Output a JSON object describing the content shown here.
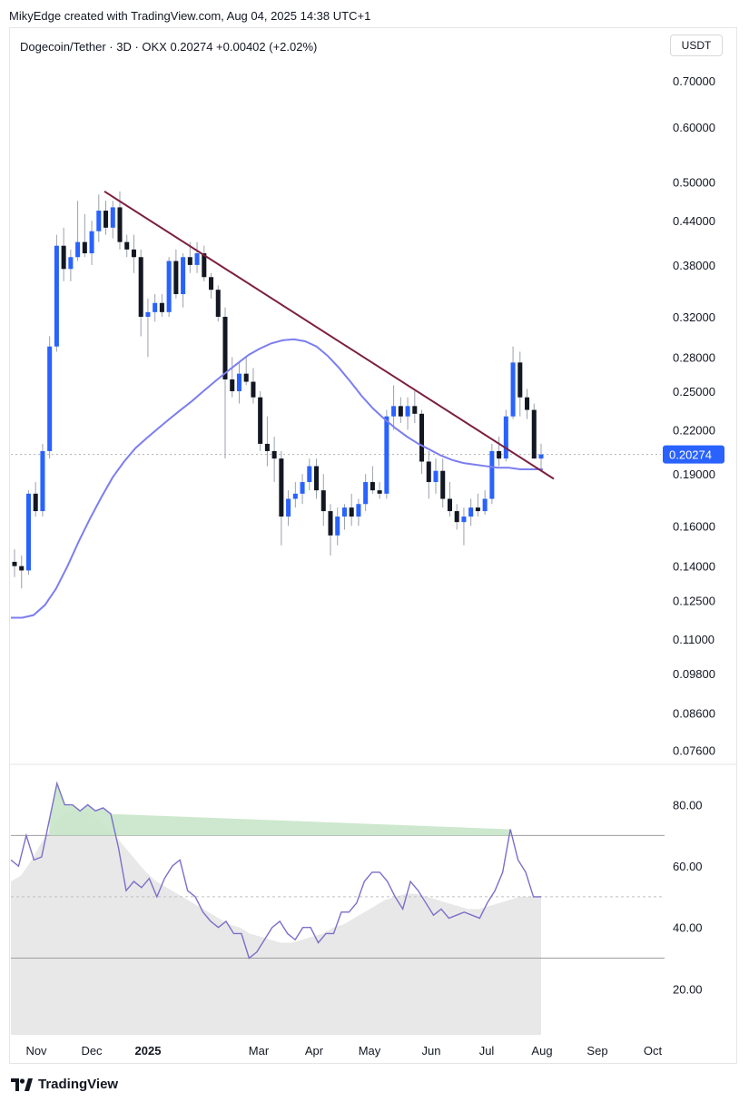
{
  "header": {
    "caption": "MikyEdge created with TradingView.com, Aug 04, 2025 14:38 UTC+1"
  },
  "legend": {
    "symbol_line": "Dogecoin/Tether · 3D · OKX  0.20274  +0.00402 (+2.02%)"
  },
  "currency_button": {
    "label": "USDT"
  },
  "footer": {
    "brand": "TradingView"
  },
  "colors": {
    "up_candle": "#2962ff",
    "down_candle": "#131722",
    "wick": "#9aa0ab",
    "trendline": "#7b1f3d",
    "moving_average": "#7b7ef0",
    "rsi_line": "#7b6fc9",
    "rsi_shade": "#e8e8e8",
    "rsi_overbought_fill": "#c8e6c9",
    "price_label_bg": "#2962ff"
  },
  "chart_data": [
    {
      "type": "candlestick",
      "title": "Dogecoin/Tether · 3D · OKX",
      "scale": "log",
      "y_ticks": [
        "0.70000",
        "0.60000",
        "0.50000",
        "0.44000",
        "0.38000",
        "0.32000",
        "0.28000",
        "0.25000",
        "0.22000",
        "0.19000",
        "0.16000",
        "0.14000",
        "0.12500",
        "0.11000",
        "0.09800",
        "0.08600",
        "0.07600"
      ],
      "x_ticks": [
        "Nov",
        "Dec",
        "2025",
        "Mar",
        "Apr",
        "May",
        "Jun",
        "Jul",
        "Aug",
        "Sep",
        "Oct"
      ],
      "current_price": "0.20274",
      "candles_ohlc": [
        [
          0.142,
          0.148,
          0.135,
          0.14
        ],
        [
          0.14,
          0.145,
          0.13,
          0.138
        ],
        [
          0.138,
          0.18,
          0.136,
          0.178
        ],
        [
          0.178,
          0.185,
          0.165,
          0.168
        ],
        [
          0.168,
          0.21,
          0.165,
          0.205
        ],
        [
          0.205,
          0.3,
          0.2,
          0.29
        ],
        [
          0.29,
          0.42,
          0.285,
          0.405
        ],
        [
          0.405,
          0.43,
          0.36,
          0.375
        ],
        [
          0.375,
          0.4,
          0.36,
          0.39
        ],
        [
          0.39,
          0.47,
          0.385,
          0.41
        ],
        [
          0.41,
          0.45,
          0.39,
          0.395
        ],
        [
          0.395,
          0.44,
          0.38,
          0.425
        ],
        [
          0.425,
          0.48,
          0.41,
          0.455
        ],
        [
          0.455,
          0.47,
          0.42,
          0.43
        ],
        [
          0.43,
          0.47,
          0.415,
          0.46
        ],
        [
          0.46,
          0.485,
          0.4,
          0.41
        ],
        [
          0.41,
          0.42,
          0.39,
          0.4
        ],
        [
          0.4,
          0.42,
          0.37,
          0.39
        ],
        [
          0.39,
          0.4,
          0.3,
          0.32
        ],
        [
          0.32,
          0.34,
          0.28,
          0.325
        ],
        [
          0.325,
          0.345,
          0.315,
          0.335
        ],
        [
          0.335,
          0.345,
          0.32,
          0.325
        ],
        [
          0.325,
          0.39,
          0.32,
          0.385
        ],
        [
          0.385,
          0.4,
          0.34,
          0.345
        ],
        [
          0.345,
          0.395,
          0.33,
          0.39
        ],
        [
          0.39,
          0.41,
          0.37,
          0.38
        ],
        [
          0.38,
          0.41,
          0.37,
          0.395
        ],
        [
          0.395,
          0.405,
          0.36,
          0.365
        ],
        [
          0.365,
          0.37,
          0.34,
          0.35
        ],
        [
          0.35,
          0.355,
          0.315,
          0.32
        ],
        [
          0.32,
          0.33,
          0.2,
          0.26
        ],
        [
          0.26,
          0.28,
          0.245,
          0.25
        ],
        [
          0.25,
          0.275,
          0.24,
          0.265
        ],
        [
          0.265,
          0.28,
          0.255,
          0.258
        ],
        [
          0.258,
          0.27,
          0.24,
          0.245
        ],
        [
          0.245,
          0.25,
          0.205,
          0.21
        ],
        [
          0.21,
          0.23,
          0.195,
          0.205
        ],
        [
          0.205,
          0.215,
          0.185,
          0.2
        ],
        [
          0.2,
          0.205,
          0.15,
          0.165
        ],
        [
          0.165,
          0.18,
          0.16,
          0.175
        ],
        [
          0.175,
          0.185,
          0.17,
          0.178
        ],
        [
          0.178,
          0.19,
          0.172,
          0.185
        ],
        [
          0.185,
          0.2,
          0.18,
          0.195
        ],
        [
          0.195,
          0.2,
          0.175,
          0.18
        ],
        [
          0.18,
          0.19,
          0.16,
          0.168
        ],
        [
          0.168,
          0.172,
          0.145,
          0.155
        ],
        [
          0.155,
          0.17,
          0.15,
          0.165
        ],
        [
          0.165,
          0.172,
          0.158,
          0.17
        ],
        [
          0.17,
          0.178,
          0.16,
          0.165
        ],
        [
          0.165,
          0.175,
          0.16,
          0.172
        ],
        [
          0.172,
          0.19,
          0.168,
          0.185
        ],
        [
          0.185,
          0.195,
          0.178,
          0.18
        ],
        [
          0.18,
          0.185,
          0.175,
          0.178
        ],
        [
          0.178,
          0.235,
          0.175,
          0.23
        ],
        [
          0.23,
          0.255,
          0.22,
          0.238
        ],
        [
          0.238,
          0.245,
          0.225,
          0.23
        ],
        [
          0.23,
          0.245,
          0.22,
          0.238
        ],
        [
          0.238,
          0.25,
          0.225,
          0.232
        ],
        [
          0.232,
          0.235,
          0.19,
          0.198
        ],
        [
          0.198,
          0.205,
          0.175,
          0.185
        ],
        [
          0.185,
          0.2,
          0.178,
          0.192
        ],
        [
          0.192,
          0.2,
          0.17,
          0.175
        ],
        [
          0.175,
          0.185,
          0.165,
          0.168
        ],
        [
          0.168,
          0.172,
          0.158,
          0.162
        ],
        [
          0.162,
          0.17,
          0.15,
          0.165
        ],
        [
          0.165,
          0.175,
          0.16,
          0.17
        ],
        [
          0.17,
          0.178,
          0.165,
          0.168
        ],
        [
          0.168,
          0.18,
          0.166,
          0.175
        ],
        [
          0.175,
          0.21,
          0.172,
          0.205
        ],
        [
          0.205,
          0.215,
          0.195,
          0.2
        ],
        [
          0.2,
          0.235,
          0.198,
          0.23
        ],
        [
          0.23,
          0.29,
          0.228,
          0.275
        ],
        [
          0.275,
          0.285,
          0.23,
          0.245
        ],
        [
          0.245,
          0.252,
          0.228,
          0.235
        ],
        [
          0.235,
          0.24,
          0.2,
          0.2
        ],
        [
          0.2,
          0.21,
          0.192,
          0.20274
        ]
      ],
      "moving_average": [
        0.118,
        0.118,
        0.119,
        0.123,
        0.13,
        0.14,
        0.152,
        0.164,
        0.176,
        0.188,
        0.198,
        0.207,
        0.214,
        0.221,
        0.228,
        0.235,
        0.242,
        0.25,
        0.258,
        0.266,
        0.274,
        0.282,
        0.288,
        0.293,
        0.296,
        0.297,
        0.295,
        0.29,
        0.281,
        0.27,
        0.258,
        0.246,
        0.236,
        0.228,
        0.221,
        0.215,
        0.21,
        0.206,
        0.202,
        0.199,
        0.197,
        0.196,
        0.195,
        0.194,
        0.194,
        0.193,
        0.193,
        0.193
      ],
      "trendline": {
        "from": {
          "x": "Dec",
          "y": 0.485
        },
        "to": {
          "x": "Aug",
          "y": 0.187
        }
      }
    },
    {
      "type": "line",
      "title": "RSI",
      "y_ticks": [
        "80.00",
        "60.00",
        "40.00",
        "20.00"
      ],
      "ylim": [
        5,
        92
      ],
      "bands": [
        70,
        30
      ],
      "midline": 50,
      "rsi": [
        62,
        60,
        70,
        62,
        63,
        75,
        87,
        80,
        80,
        78,
        80,
        78,
        79,
        77,
        66,
        52,
        55,
        53,
        56,
        50,
        56,
        60,
        62,
        52,
        50,
        45,
        42,
        40,
        42,
        38,
        38,
        30,
        32,
        36,
        40,
        42,
        38,
        36,
        40,
        40,
        35,
        38,
        38,
        45,
        45,
        48,
        55,
        58,
        58,
        55,
        50,
        46,
        55,
        52,
        48,
        44,
        46,
        43,
        44,
        45,
        44,
        43,
        48,
        52,
        58,
        72,
        62,
        58,
        50,
        50
      ],
      "rsi_ma": [
        55,
        57,
        62,
        68,
        73,
        77,
        78,
        78,
        76,
        73,
        70,
        66,
        62,
        58,
        55,
        53,
        51,
        49,
        47,
        45,
        43,
        41,
        40,
        38,
        37,
        36,
        35,
        35,
        36,
        37,
        38,
        40,
        41,
        43,
        45,
        47,
        49,
        50,
        51,
        51,
        50,
        49,
        48,
        47,
        46,
        46,
        47,
        48,
        49,
        50,
        50,
        50
      ]
    }
  ]
}
